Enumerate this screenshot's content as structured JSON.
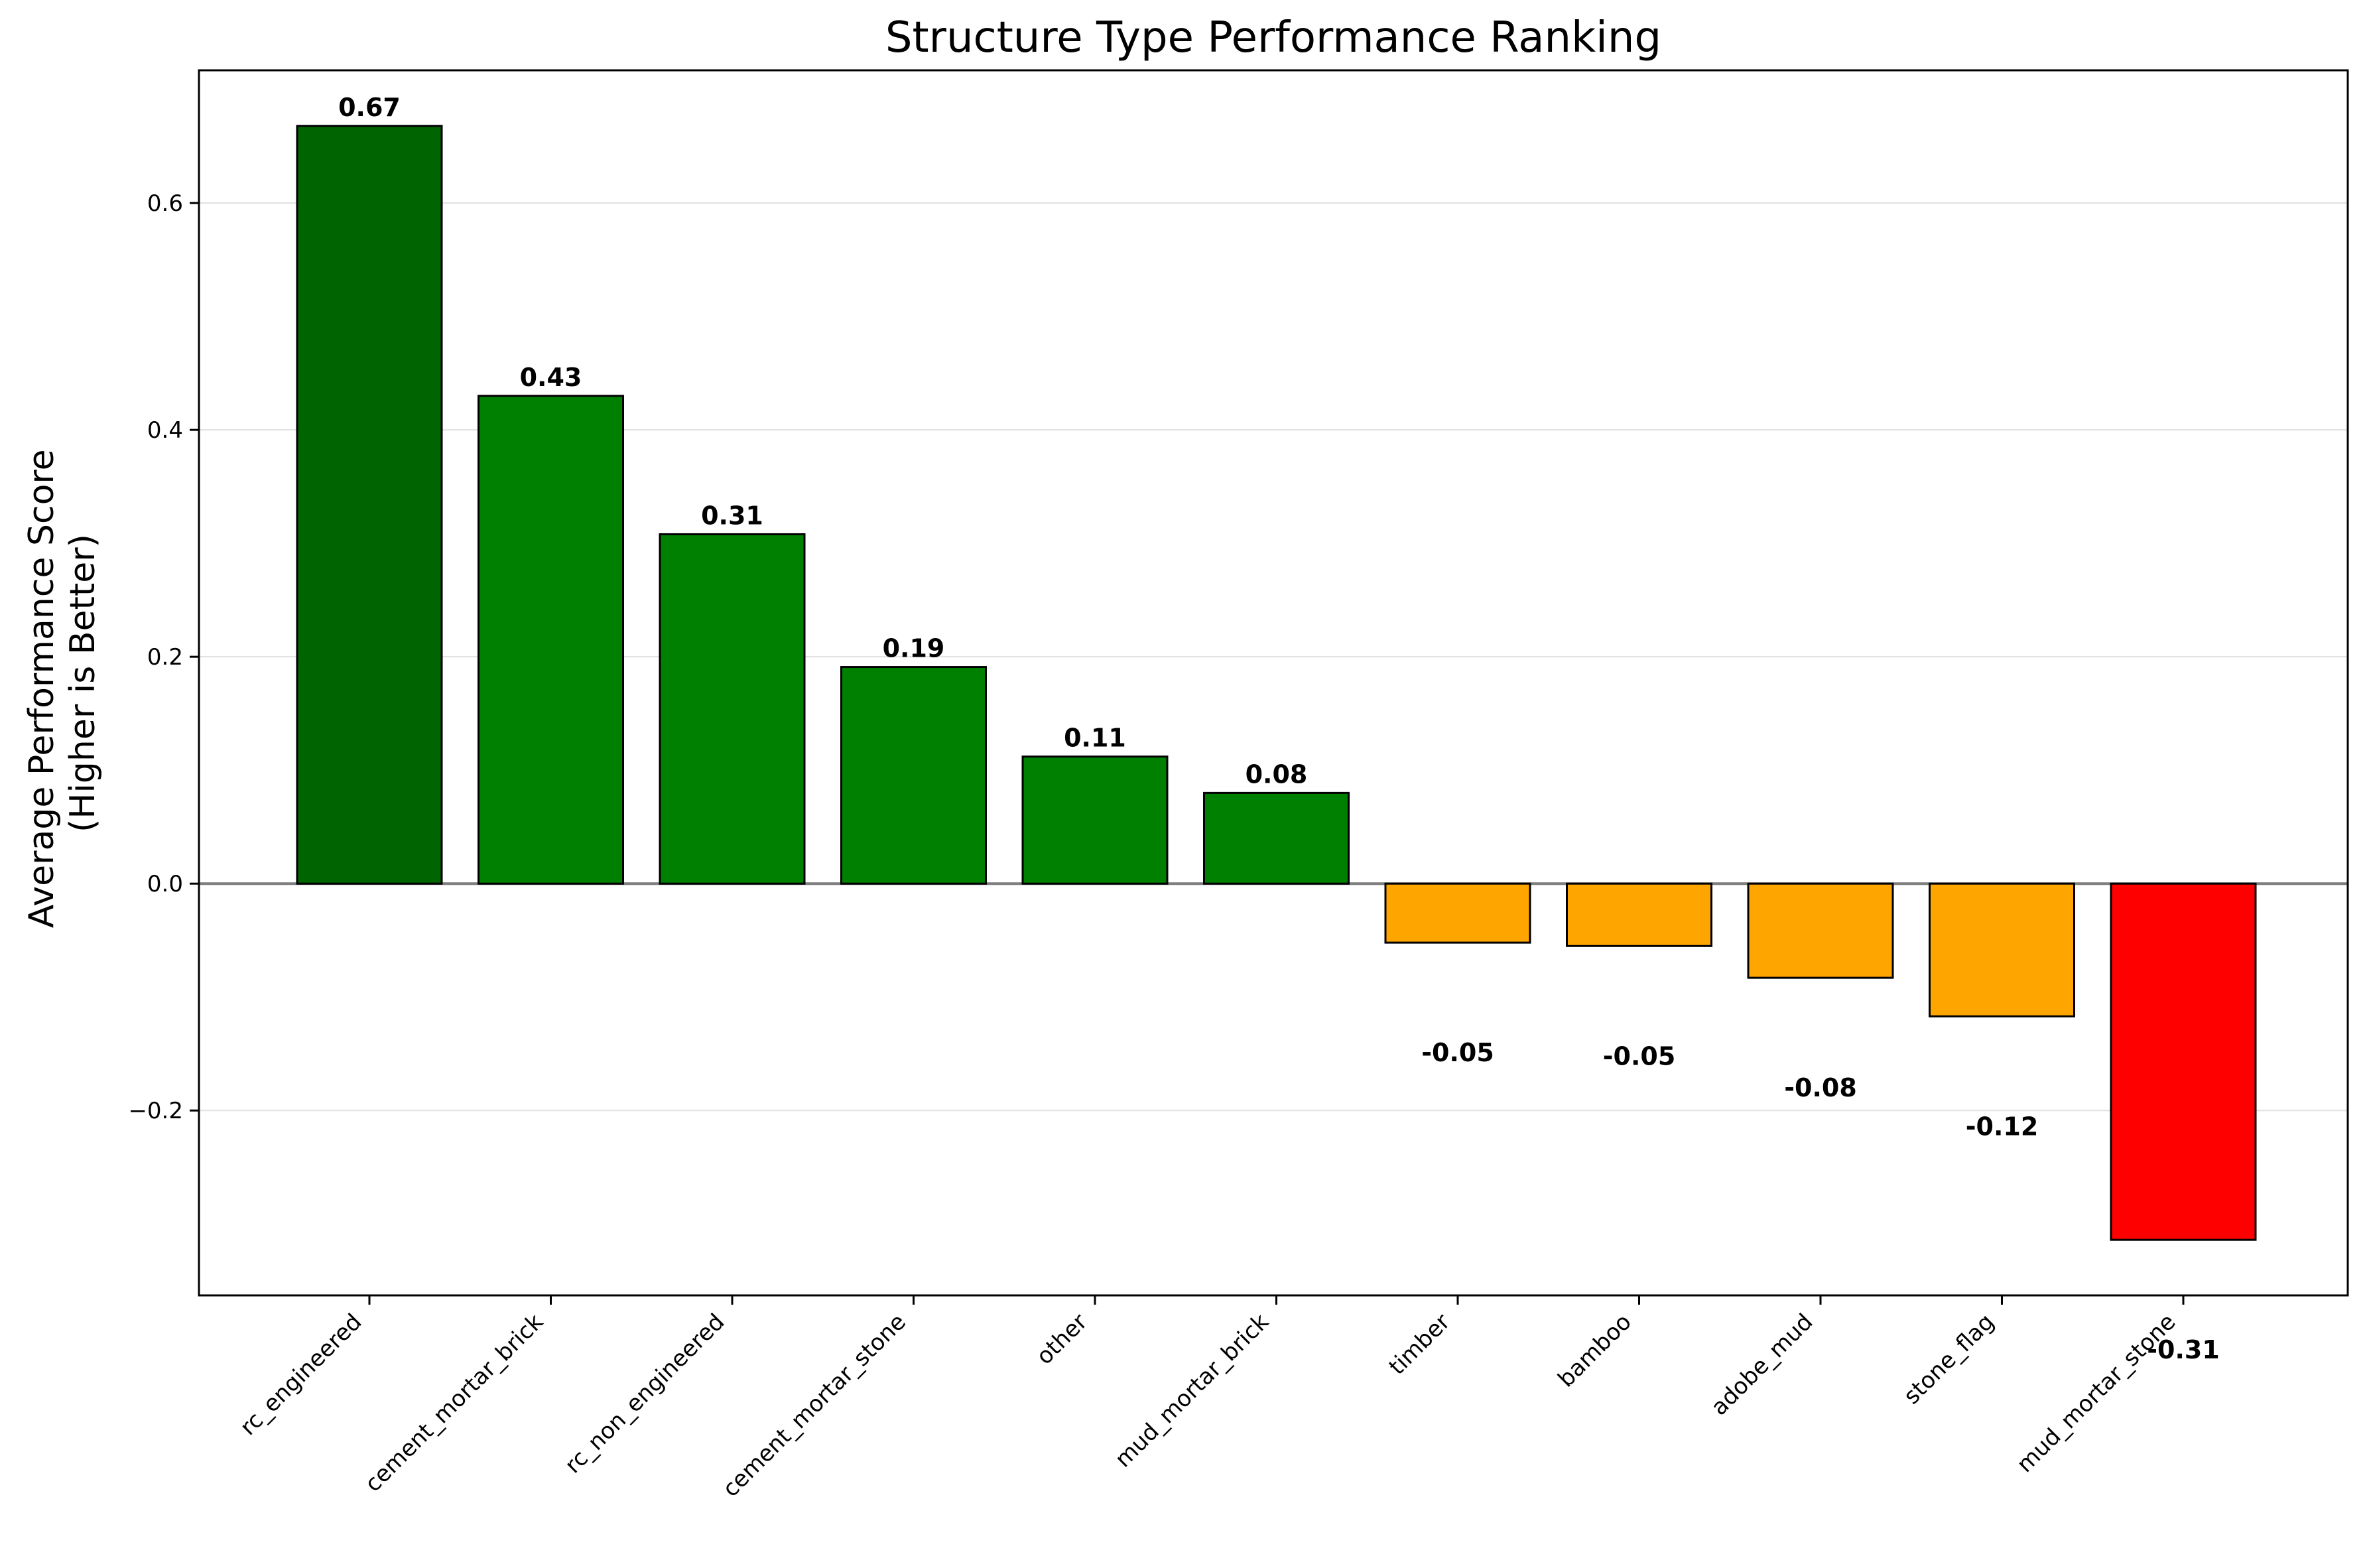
{
  "chart_data": {
    "type": "bar",
    "title": "Structure Type Performance Ranking",
    "xlabel": "",
    "ylabel_lines": [
      "Average Performance Score",
      "(Higher is Better)"
    ],
    "categories": [
      "rc_engineered",
      "cement_mortar_brick",
      "rc_non_engineered",
      "cement_mortar_stone",
      "other",
      "mud_mortar_brick",
      "timber",
      "bamboo",
      "adobe_mud",
      "stone_flag",
      "mud_mortar_stone"
    ],
    "values": [
      0.668,
      0.43,
      0.308,
      0.191,
      0.112,
      0.08,
      -0.052,
      -0.055,
      -0.083,
      -0.117,
      -0.314
    ],
    "value_labels": [
      "0.67",
      "0.43",
      "0.31",
      "0.19",
      "0.11",
      "0.08",
      "-0.05",
      "-0.05",
      "-0.08",
      "-0.12",
      "-0.31"
    ],
    "colors": [
      "#006400",
      "#008000",
      "#008000",
      "#008000",
      "#008000",
      "#008000",
      "#FFA500",
      "#FFA500",
      "#FFA500",
      "#FFA500",
      "#FF0000"
    ],
    "ylim": [
      -0.363,
      0.717
    ],
    "yticks": [
      -0.2,
      0.0,
      0.2,
      0.4,
      0.6
    ],
    "ytick_labels": [
      "−0.2",
      "0.0",
      "0.2",
      "0.4",
      "0.6"
    ],
    "grid": "horizontal",
    "zero_line": true,
    "legend": "none"
  }
}
